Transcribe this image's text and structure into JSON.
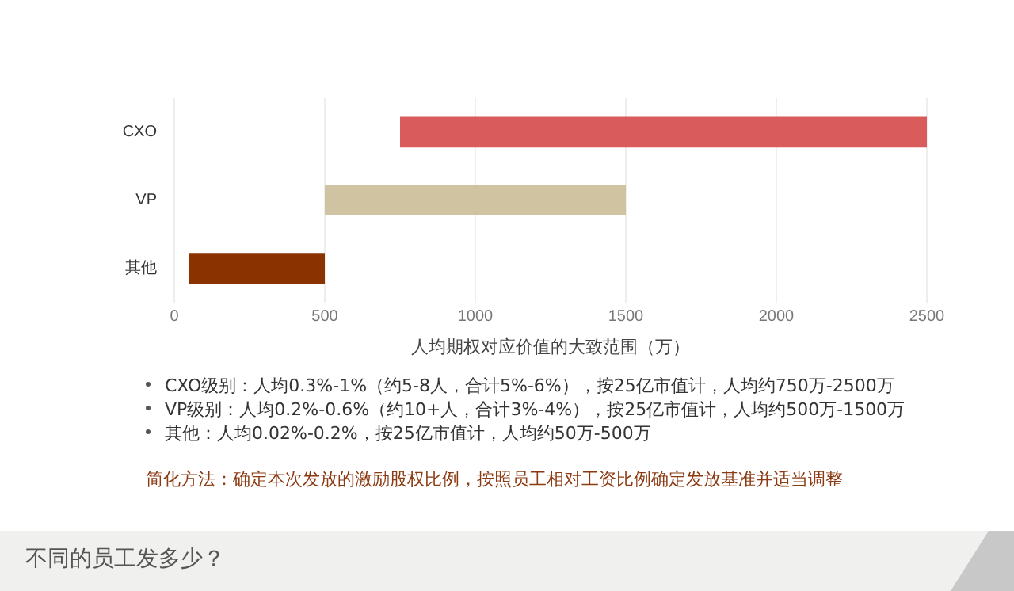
{
  "chart_data": {
    "type": "bar",
    "orientation": "horizontal",
    "title": "不同的员工发多少？",
    "xlabel": "人均期权对应价值的大致范围（万）",
    "categories": [
      "CXO",
      "VP",
      "其他"
    ],
    "base": [
      750,
      500,
      50
    ],
    "values": [
      1750,
      1000,
      450
    ],
    "colors": [
      "#d95b5b",
      "#cfc3a1",
      "#8b3300"
    ],
    "xlim": [
      0,
      2500
    ],
    "xticks": [
      0,
      500,
      1000,
      1500,
      2000,
      2500
    ],
    "grid": "x",
    "annotations": [
      "CXO级别：人均0.3%-1%（约5-8人，合计5%-6%），按25亿市值计，人均约750万-2500万",
      "VP级别：人均0.2%-0.6%（约10+人，合计3%-4%），按25亿市值计，人均约500万-1500万",
      "其他：人均0.02%-0.2%，按25亿市值计，人均约50万-500万",
      "简化方法：确定本次发放的激励股权比例，按照员工相对工资比例确定发放基准并适当调整"
    ]
  }
}
